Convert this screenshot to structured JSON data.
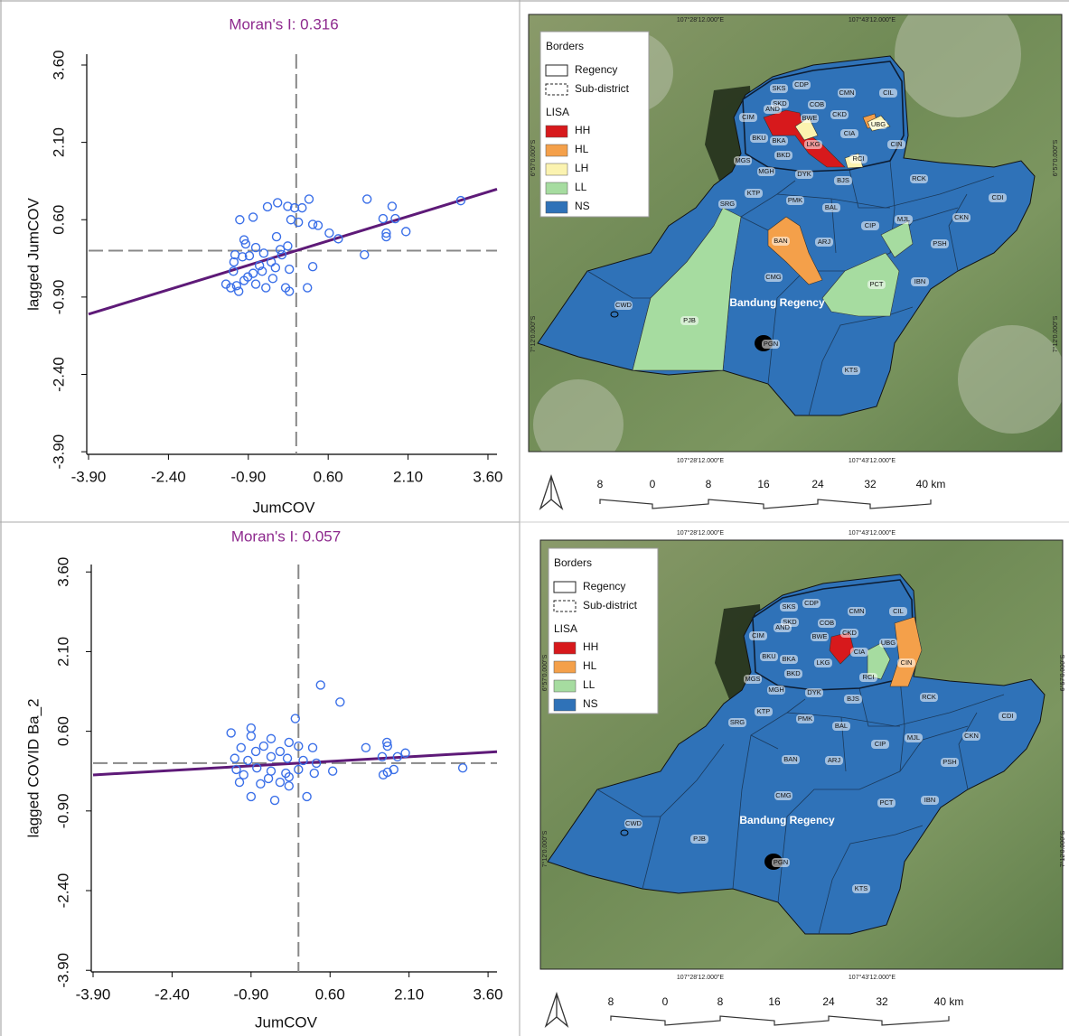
{
  "chart_data": [
    {
      "type": "scatter",
      "title": "Moran's I: 0.316",
      "x_label": "JumCOV",
      "y_label": "lagged JumCOV",
      "x": [
        0.24,
        -0.35,
        -0.16,
        -0.03,
        0.11,
        -0.54,
        -0.81,
        -1.06,
        -0.1,
        0.04,
        0.31,
        0.41,
        0.62,
        0.79,
        -0.37,
        -0.98,
        -0.95,
        -0.76,
        -0.3,
        -0.16,
        1.33,
        1.8,
        1.63,
        1.86,
        2.06,
        1.69,
        1.69,
        3.09,
        1.28,
        -1.15,
        -1.01,
        -0.61,
        -0.47,
        -0.69,
        -0.39,
        -0.27,
        -0.13,
        0.31,
        -1.32,
        -1.23,
        -1.12,
        -0.98,
        -0.76,
        -0.57,
        -0.44,
        -0.64,
        -0.81,
        -0.2,
        -0.13,
        0.21,
        -1.17,
        -1.18,
        -0.88,
        -1.08,
        -0.91
      ],
      "values": [
        1.0,
        0.93,
        0.86,
        0.83,
        0.83,
        0.85,
        0.65,
        0.6,
        0.6,
        0.55,
        0.51,
        0.49,
        0.34,
        0.23,
        0.27,
        0.21,
        0.13,
        0.06,
        0.02,
        0.09,
        1.0,
        0.86,
        0.62,
        0.62,
        0.37,
        0.34,
        0.27,
        0.97,
        -0.08,
        -0.08,
        -0.12,
        -0.05,
        -0.22,
        -0.29,
        -0.33,
        -0.08,
        -0.36,
        -0.31,
        -0.65,
        -0.72,
        -0.68,
        -0.58,
        -0.65,
        -0.72,
        -0.54,
        -0.4,
        -0.44,
        -0.72,
        -0.79,
        -0.72,
        -0.22,
        -0.4,
        -0.1,
        -0.79,
        -0.51
      ],
      "line_slope": 0.316,
      "color": "#3a6fe8",
      "line_color": "#5e1a78",
      "xlim": [
        -3.9,
        3.77
      ],
      "ylim": [
        -3.95,
        3.81
      ],
      "xticks": [
        {
          "value": -3.9,
          "label": "-3.90"
        },
        {
          "value": -2.4,
          "label": "-2.40"
        },
        {
          "value": -0.9,
          "label": "-0.90"
        },
        {
          "value": 0.6,
          "label": "0.60"
        },
        {
          "value": 2.1,
          "label": "2.10"
        },
        {
          "value": 3.6,
          "label": "3.60"
        }
      ],
      "yticks": [
        {
          "value": -3.9,
          "label": "-3.90"
        },
        {
          "value": -2.4,
          "label": "-2.40"
        },
        {
          "value": -0.9,
          "label": "-0.90"
        },
        {
          "value": 0.6,
          "label": "0.60"
        },
        {
          "value": 2.1,
          "label": "2.10"
        },
        {
          "value": 3.6,
          "label": "3.60"
        }
      ]
    },
    {
      "type": "scatter",
      "title": "Moran's I: 0.057",
      "x_label": "JumCOV",
      "y_label": "lagged COVID Ba_2",
      "x": [
        0.42,
        0.79,
        -0.06,
        -1.28,
        -0.9,
        -0.9,
        -0.52,
        -0.18,
        0.0,
        0.27,
        -0.66,
        -1.09,
        -0.81,
        -0.35,
        1.28,
        1.68,
        1.69,
        2.03,
        1.88,
        1.59,
        -1.21,
        -0.96,
        -0.52,
        -0.21,
        0.09,
        0.34,
        0.65,
        1.81,
        1.61,
        1.69,
        3.12,
        -1.18,
        -0.79,
        -0.52,
        -0.24,
        0.0,
        0.3,
        -1.12,
        -0.72,
        -0.35,
        -0.18,
        -0.9,
        -0.45,
        0.16,
        -0.57,
        -1.04,
        -0.18
      ],
      "values": [
        1.47,
        1.15,
        0.84,
        0.57,
        0.66,
        0.51,
        0.46,
        0.39,
        0.32,
        0.29,
        0.32,
        0.29,
        0.22,
        0.22,
        0.29,
        0.39,
        0.32,
        0.19,
        0.12,
        0.12,
        0.09,
        0.05,
        0.12,
        0.09,
        0.05,
        0.0,
        -0.15,
        -0.12,
        -0.22,
        -0.17,
        -0.09,
        -0.12,
        -0.09,
        -0.15,
        -0.19,
        -0.12,
        -0.19,
        -0.36,
        -0.39,
        -0.36,
        -0.43,
        -0.63,
        -0.7,
        -0.63,
        -0.29,
        -0.22,
        -0.26
      ],
      "line_slope": 0.057,
      "color": "#3a6fe8",
      "line_color": "#5e1a78",
      "xlim": [
        -3.9,
        3.77
      ],
      "ylim": [
        -3.93,
        3.74
      ],
      "xticks": [
        {
          "value": -3.9,
          "label": "-3.90"
        },
        {
          "value": -2.4,
          "label": "-2.40"
        },
        {
          "value": -0.9,
          "label": "-0.90"
        },
        {
          "value": 0.6,
          "label": "0.60"
        },
        {
          "value": 2.1,
          "label": "2.10"
        },
        {
          "value": 3.6,
          "label": "3.60"
        }
      ],
      "yticks": [
        {
          "value": -3.9,
          "label": "-3.90"
        },
        {
          "value": -2.4,
          "label": "-2.40"
        },
        {
          "value": -0.9,
          "label": "-0.90"
        },
        {
          "value": 0.6,
          "label": "0.60"
        },
        {
          "value": 2.1,
          "label": "2.10"
        },
        {
          "value": 3.6,
          "label": "3.60"
        }
      ]
    }
  ],
  "maps": [
    {
      "legend": {
        "borders_title": "Borders",
        "borders": [
          "Regency",
          "Sub-district"
        ],
        "lisa_title": "LISA",
        "classes": [
          {
            "name": "HH",
            "color": "#d7191c"
          },
          {
            "name": "HL",
            "color": "#f4a04a"
          },
          {
            "name": "LH",
            "color": "#fbf3b0"
          },
          {
            "name": "LL",
            "color": "#a6dca0"
          },
          {
            "name": "NS",
            "color": "#2f72b8"
          }
        ]
      },
      "region_label": "Bandung Regency",
      "districts": [
        "SKS",
        "CDP",
        "CMN",
        "CIL",
        "SKD",
        "AND",
        "COB",
        "BWE",
        "CKD",
        "UBG",
        "CIM",
        "BKU",
        "BKA",
        "CIA",
        "LKG",
        "CIN",
        "BKD",
        "RCI",
        "MGS",
        "MGH",
        "DYK",
        "BJS",
        "RCK",
        "KTP",
        "PMK",
        "SRG",
        "BAL",
        "CIP",
        "MJL",
        "CKN",
        "CDI",
        "BAN",
        "ARJ",
        "PSH",
        "CMG",
        "PCT",
        "IBN",
        "CWD",
        "PJB",
        "PGN",
        "KTS"
      ],
      "lon_labels": [
        "107°28'12.000\"E",
        "107°43'12.000\"E"
      ],
      "lat_labels": [
        "6°57'0.000\"S",
        "7°12'0.000\"S"
      ],
      "scale_labels": [
        "8",
        "0",
        "8",
        "16",
        "24",
        "32",
        "40 km"
      ]
    },
    {
      "legend": {
        "borders_title": "Borders",
        "borders": [
          "Regency",
          "Sub-district"
        ],
        "lisa_title": "LISA",
        "classes": [
          {
            "name": "HH",
            "color": "#d7191c"
          },
          {
            "name": "HL",
            "color": "#f4a04a"
          },
          {
            "name": "LL",
            "color": "#a6dca0"
          },
          {
            "name": "NS",
            "color": "#2f72b8"
          }
        ]
      },
      "region_label": "Bandung Regency",
      "districts": [
        "SKS",
        "CDP",
        "CMN",
        "CIL",
        "SKD",
        "AND",
        "COB",
        "BWE",
        "CKD",
        "UBG",
        "CIM",
        "BKU",
        "BKA",
        "CIA",
        "LKG",
        "CIN",
        "BKD",
        "RCI",
        "MGS",
        "MGH",
        "DYK",
        "BJS",
        "RCK",
        "KTP",
        "PMK",
        "SRG",
        "BAL",
        "CIP",
        "MJL",
        "CKN",
        "CDI",
        "BAN",
        "ARJ",
        "PSH",
        "CMG",
        "PCT",
        "IBN",
        "CWD",
        "PJB",
        "PGN",
        "KTS"
      ],
      "lon_labels": [
        "107°28'12.000\"E",
        "107°43'12.000\"E"
      ],
      "lat_labels": [
        "6°57'0.000\"S",
        "7°12'0.000\"S"
      ],
      "scale_labels": [
        "8",
        "0",
        "8",
        "16",
        "24",
        "32",
        "40 km"
      ]
    }
  ]
}
